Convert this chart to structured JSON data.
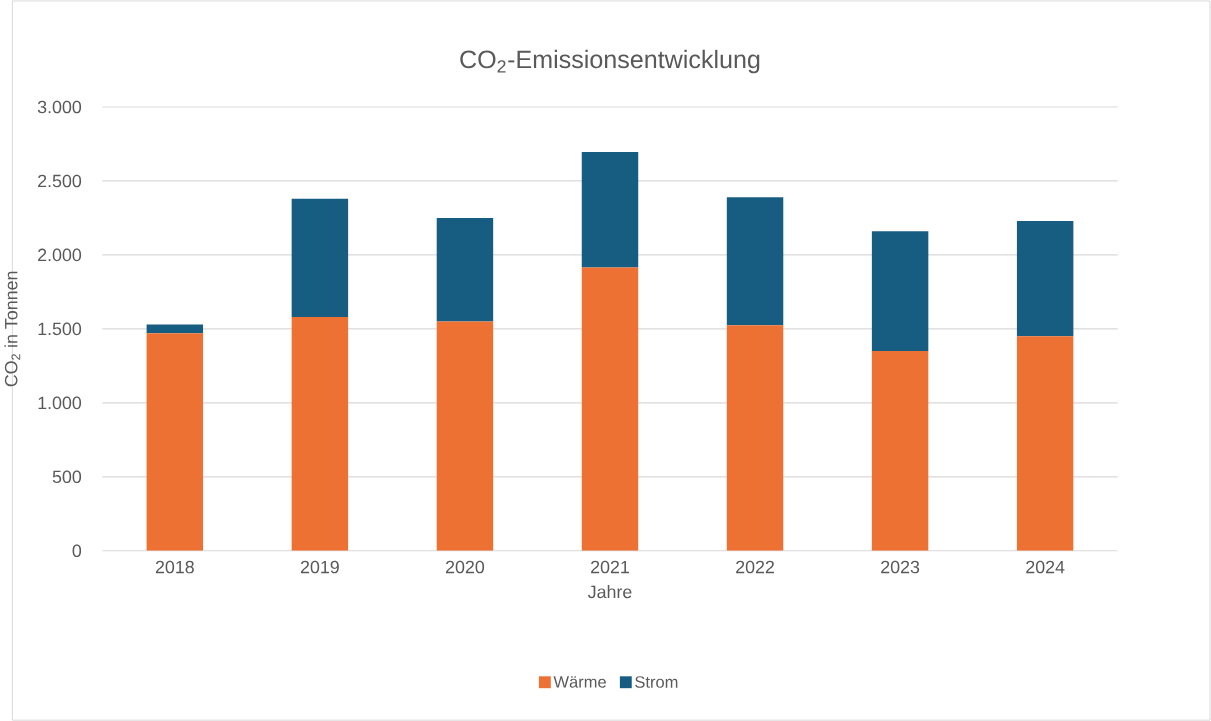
{
  "chart_data": {
    "type": "bar",
    "title": "CO$_{2}$-Emissionsentwicklung",
    "xlabel": "Jahre",
    "ylabel": "CO$_{2}$ in Tonnen",
    "categories": [
      "2018",
      "2019",
      "2020",
      "2021",
      "2022",
      "2023",
      "2024"
    ],
    "series": [
      {
        "name": "Wärme",
        "color": "#ed7132",
        "values": [
          1470,
          1580,
          1550,
          1915,
          1525,
          1350,
          1450
        ]
      },
      {
        "name": "Strom",
        "color": "#175d81",
        "values": [
          60,
          800,
          700,
          780,
          865,
          810,
          780
        ]
      }
    ],
    "stacked": true,
    "ylim": [
      0,
      3000
    ],
    "yticks": [
      {
        "value": 0,
        "label": "0"
      },
      {
        "value": 500,
        "label": "500"
      },
      {
        "value": 1000,
        "label": "1.000"
      },
      {
        "value": 1500,
        "label": "1.500"
      },
      {
        "value": 2000,
        "label": "2.000"
      },
      {
        "value": 2500,
        "label": "2.500"
      },
      {
        "value": 3000,
        "label": "3.000"
      }
    ],
    "grid": "y",
    "legend": "bottom"
  }
}
